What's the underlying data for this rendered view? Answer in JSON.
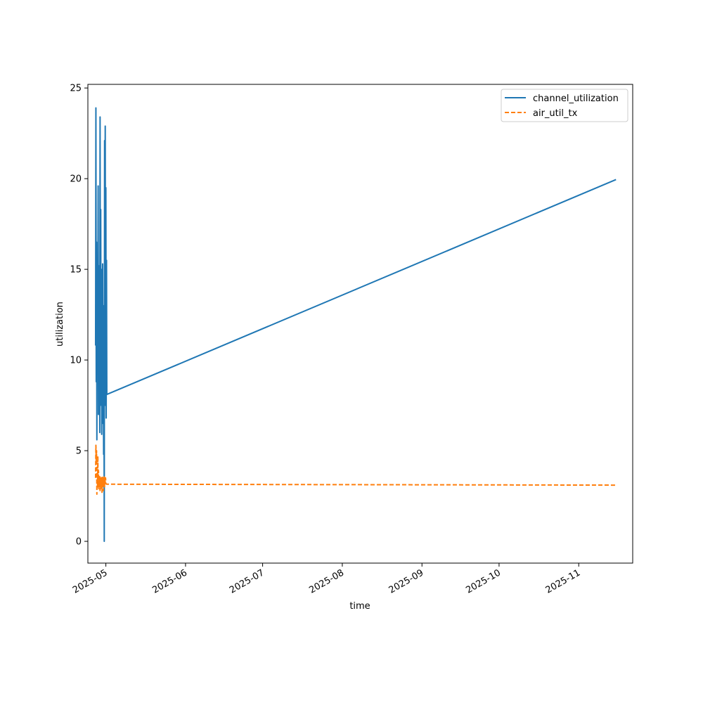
{
  "chart_data": {
    "type": "line",
    "title": "",
    "xlabel": "time",
    "ylabel": "utilization",
    "x_tick_labels": [
      "2025-05",
      "2025-06",
      "2025-07",
      "2025-08",
      "2025-09",
      "2025-10",
      "2025-11"
    ],
    "x_tick_dates": [
      "2025-05-01",
      "2025-06-01",
      "2025-07-01",
      "2025-08-01",
      "2025-09-01",
      "2025-10-01",
      "2025-11-01"
    ],
    "y_ticks": [
      0,
      5,
      10,
      15,
      20,
      25
    ],
    "xlim": [
      "2025-04-24",
      "2025-11-22"
    ],
    "ylim": [
      -1.2,
      25.2
    ],
    "grid": false,
    "legend_position": "upper right",
    "series": [
      {
        "name": "channel_utilization",
        "color": "#1f77b4",
        "dash": "solid",
        "points": [
          [
            "2025-04-27T00:00",
            10.8
          ],
          [
            "2025-04-27T03:00",
            23.9
          ],
          [
            "2025-04-27T06:00",
            8.8
          ],
          [
            "2025-04-27T09:00",
            16.5
          ],
          [
            "2025-04-27T12:00",
            5.6
          ],
          [
            "2025-04-27T15:00",
            14.0
          ],
          [
            "2025-04-27T18:00",
            9.5
          ],
          [
            "2025-04-27T21:00",
            11.5
          ],
          [
            "2025-04-28T00:00",
            19.6
          ],
          [
            "2025-04-28T03:00",
            7.0
          ],
          [
            "2025-04-28T06:00",
            15.2
          ],
          [
            "2025-04-28T09:00",
            8.5
          ],
          [
            "2025-04-28T12:00",
            12.0
          ],
          [
            "2025-04-28T15:00",
            6.0
          ],
          [
            "2025-04-28T18:00",
            23.4
          ],
          [
            "2025-04-28T21:00",
            9.0
          ],
          [
            "2025-04-29T00:00",
            18.3
          ],
          [
            "2025-04-29T03:00",
            7.5
          ],
          [
            "2025-04-29T06:00",
            15.0
          ],
          [
            "2025-04-29T09:00",
            5.9
          ],
          [
            "2025-04-29T12:00",
            12.5
          ],
          [
            "2025-04-29T15:00",
            8.0
          ],
          [
            "2025-04-29T18:00",
            15.3
          ],
          [
            "2025-04-29T21:00",
            6.5
          ],
          [
            "2025-04-30T00:00",
            13.0
          ],
          [
            "2025-04-30T03:00",
            4.8
          ],
          [
            "2025-04-30T06:00",
            10.5
          ],
          [
            "2025-04-30T09:00",
            0.0
          ],
          [
            "2025-04-30T12:00",
            22.1
          ],
          [
            "2025-04-30T15:00",
            8.5
          ],
          [
            "2025-04-30T18:00",
            22.9
          ],
          [
            "2025-04-30T21:00",
            7.5
          ],
          [
            "2025-05-01T00:00",
            19.5
          ],
          [
            "2025-05-01T03:00",
            6.8
          ],
          [
            "2025-05-01T06:00",
            15.5
          ],
          [
            "2025-05-01T09:00",
            8.1
          ],
          [
            "2025-11-15T12:00",
            19.95
          ]
        ]
      },
      {
        "name": "air_util_tx",
        "color": "#ff7f0e",
        "dash": "dashed",
        "points": [
          [
            "2025-04-27T00:00",
            3.5
          ],
          [
            "2025-04-27T03:00",
            5.3
          ],
          [
            "2025-04-27T06:00",
            4.4
          ],
          [
            "2025-04-27T09:00",
            5.0
          ],
          [
            "2025-04-27T12:00",
            2.6
          ],
          [
            "2025-04-27T15:00",
            3.8
          ],
          [
            "2025-04-27T18:00",
            3.0
          ],
          [
            "2025-04-27T21:00",
            4.7
          ],
          [
            "2025-04-28T00:00",
            3.2
          ],
          [
            "2025-04-28T03:00",
            3.9
          ],
          [
            "2025-04-28T06:00",
            2.9
          ],
          [
            "2025-04-28T09:00",
            3.5
          ],
          [
            "2025-04-28T12:00",
            3.0
          ],
          [
            "2025-04-28T15:00",
            3.6
          ],
          [
            "2025-04-28T18:00",
            2.8
          ],
          [
            "2025-04-28T21:00",
            3.4
          ],
          [
            "2025-04-29T00:00",
            2.9
          ],
          [
            "2025-04-29T03:00",
            3.5
          ],
          [
            "2025-04-29T06:00",
            3.0
          ],
          [
            "2025-04-29T09:00",
            3.3
          ],
          [
            "2025-04-29T12:00",
            2.7
          ],
          [
            "2025-04-29T15:00",
            3.6
          ],
          [
            "2025-04-29T18:00",
            3.0
          ],
          [
            "2025-04-29T21:00",
            3.4
          ],
          [
            "2025-04-30T00:00",
            2.8
          ],
          [
            "2025-04-30T03:00",
            3.5
          ],
          [
            "2025-04-30T06:00",
            3.1
          ],
          [
            "2025-04-30T09:00",
            3.6
          ],
          [
            "2025-04-30T12:00",
            3.0
          ],
          [
            "2025-04-30T15:00",
            3.4
          ],
          [
            "2025-04-30T18:00",
            3.2
          ],
          [
            "2025-04-30T21:00",
            3.5
          ],
          [
            "2025-05-01T00:00",
            3.2
          ],
          [
            "2025-05-01T06:00",
            3.15
          ],
          [
            "2025-11-15T12:00",
            3.1
          ]
        ]
      }
    ]
  }
}
